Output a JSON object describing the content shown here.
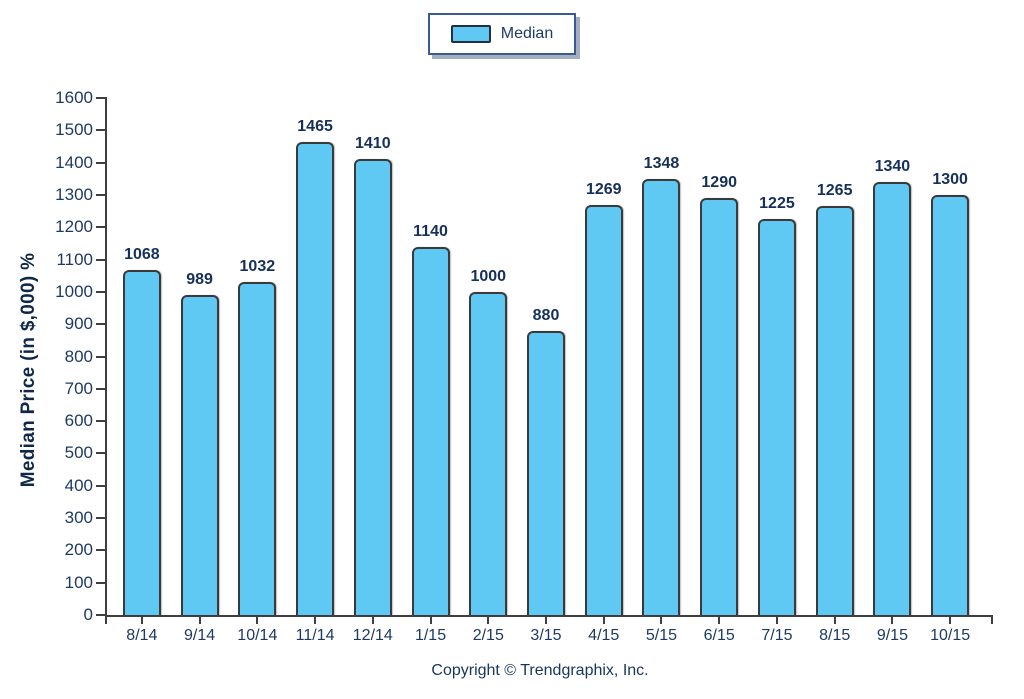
{
  "chart_data": {
    "type": "bar",
    "categories": [
      "8/14",
      "9/14",
      "10/14",
      "11/14",
      "12/14",
      "1/15",
      "2/15",
      "3/15",
      "4/15",
      "5/15",
      "6/15",
      "7/15",
      "8/15",
      "9/15",
      "10/15"
    ],
    "values": [
      1068,
      989,
      1032,
      1465,
      1410,
      1140,
      1000,
      880,
      1269,
      1348,
      1290,
      1225,
      1265,
      1340,
      1300
    ],
    "title": "",
    "xlabel": "",
    "ylabel": "Median Price (in $,000) %",
    "ylim": [
      0,
      1600
    ],
    "ytick_step": 100,
    "grid": false,
    "bar_value_labels_shown": true,
    "legend": {
      "position": "top-center",
      "entries": [
        {
          "label": "Median",
          "swatch_color": "#5FC8F3"
        }
      ]
    }
  },
  "footer": {
    "copyright": "Copyright © Trendgraphix, Inc."
  },
  "colors": {
    "bar_fill": "#5FC8F3",
    "bar_border": "#3A3A3A",
    "axis_line": "#3F3F3F",
    "label_text": "#1E3A64",
    "value_text": "#16305A",
    "legend_border": "#3A5A94",
    "background": "#FFFFFF"
  }
}
